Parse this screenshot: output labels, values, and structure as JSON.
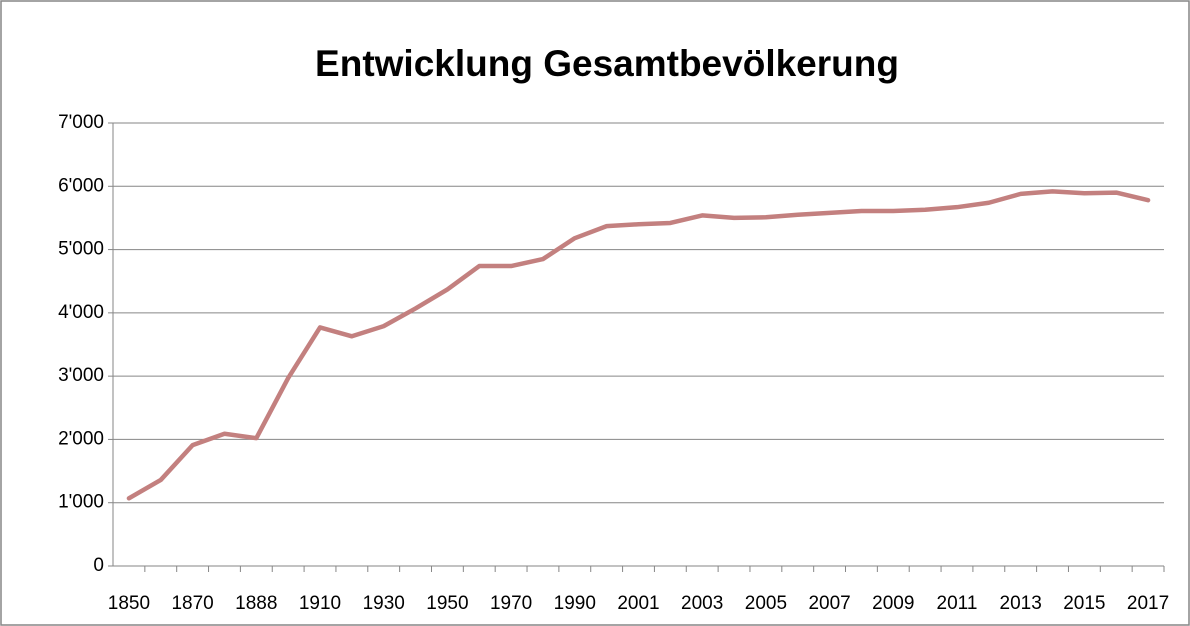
{
  "chart_data": {
    "type": "line",
    "title": "Entwicklung Gesamtbevölkerung",
    "categories": [
      "1850",
      null,
      "1870",
      null,
      "1888",
      null,
      "1910",
      null,
      "1930",
      null,
      "1950",
      null,
      "1970",
      null,
      "1990",
      null,
      "2001",
      null,
      "2003",
      null,
      "2005",
      null,
      "2007",
      null,
      "2009",
      null,
      "2011",
      null,
      "2013",
      null,
      "2015",
      null,
      "2017"
    ],
    "series": [
      {
        "color": "#c3807f",
        "values": [
          1070,
          1360,
          1910,
          2090,
          2020,
          2970,
          3770,
          3630,
          3790,
          4070,
          4370,
          4740,
          4740,
          4850,
          5180,
          5370,
          5400,
          5420,
          5540,
          5500,
          5510,
          5550,
          5580,
          5610,
          5610,
          5630,
          5670,
          5740,
          5880,
          5920,
          5890,
          5900,
          5780
        ]
      }
    ],
    "ylim": [
      0,
      7000
    ],
    "yticks": [
      0,
      {
        "value": 1000,
        "label": "1'000"
      },
      {
        "value": 2000,
        "label": "2'000"
      },
      {
        "value": 3000,
        "label": "3'000"
      },
      {
        "value": 4000,
        "label": "4'000"
      },
      {
        "value": 5000,
        "label": "5'000"
      },
      {
        "value": 6000,
        "label": "6'000"
      },
      {
        "value": 7000,
        "label": "7'000"
      }
    ],
    "grid": true
  }
}
